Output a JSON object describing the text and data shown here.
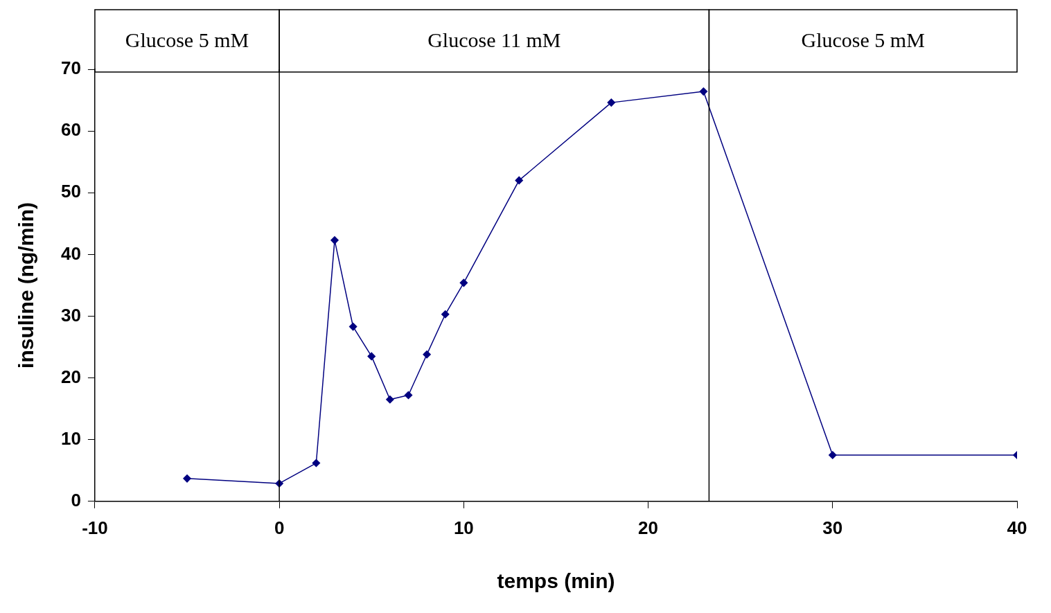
{
  "chart_data": {
    "type": "line",
    "xlabel": "temps (min)",
    "ylabel": "insuline (ng/min)",
    "x": [
      -5,
      0,
      2,
      3,
      4,
      5,
      6,
      7,
      8,
      9,
      10,
      13,
      18,
      23,
      30,
      40
    ],
    "series": [
      {
        "color": "#000080",
        "values": [
          3.7,
          2.9,
          6.2,
          42.3,
          28.3,
          23.5,
          16.5,
          17.2,
          23.8,
          30.3,
          35.4,
          52.0,
          64.6,
          66.4,
          7.5,
          7.5
        ]
      }
    ],
    "xlim": [
      -10,
      40
    ],
    "xticks": [
      -10,
      0,
      10,
      20,
      30,
      40
    ],
    "ylim": [
      0,
      70
    ],
    "yticks": [
      0,
      10,
      20,
      30,
      40,
      50,
      60,
      70
    ],
    "ref_lines": [
      {
        "axis": "x",
        "value": 0
      },
      {
        "axis": "x",
        "value": 23.3
      }
    ],
    "annotations": [
      "Glucose 5 mM",
      "Glucose 11 mM",
      "Glucose 5 mM"
    ],
    "grid": false,
    "legend": false,
    "marker": "diamond",
    "line_style": "solid"
  }
}
